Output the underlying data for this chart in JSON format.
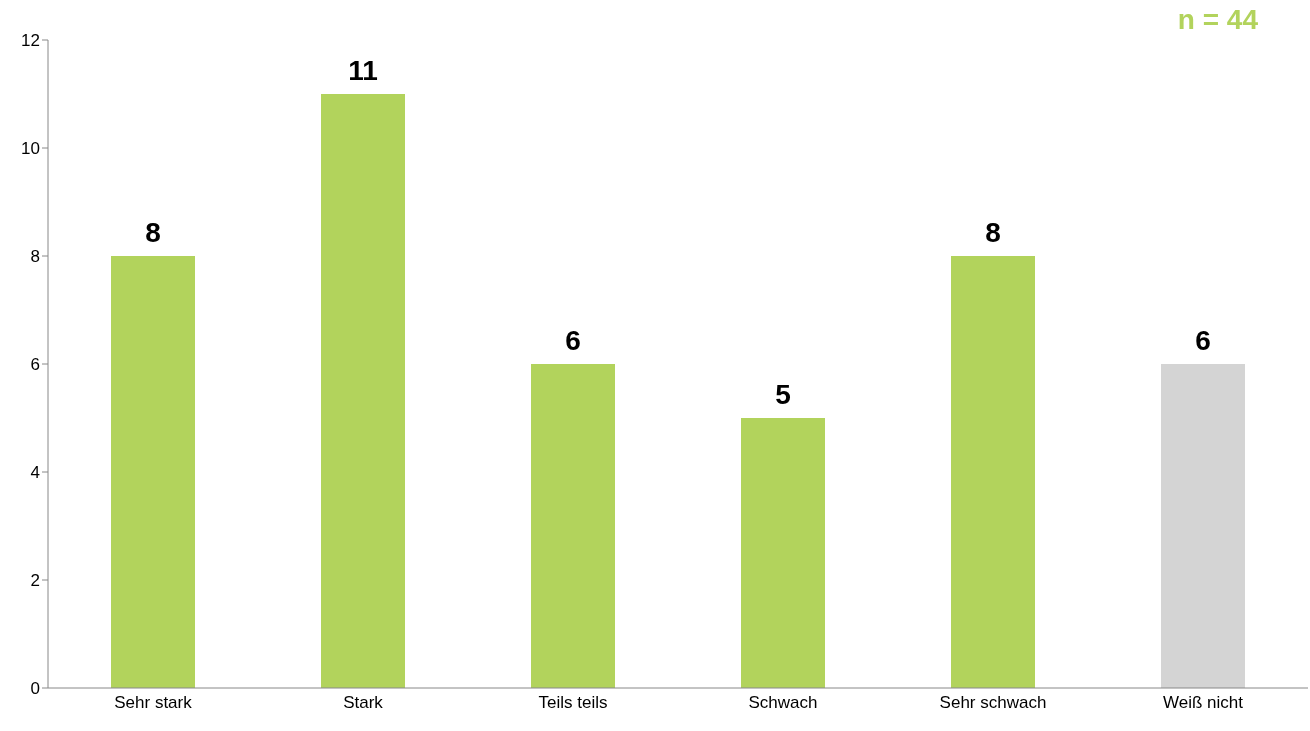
{
  "chart_data": {
    "type": "bar",
    "annotations": [
      "n = 44"
    ],
    "categories": [
      "Sehr stark",
      "Stark",
      "Teils teils",
      "Schwach",
      "Sehr schwach",
      "Weiß nicht"
    ],
    "values": [
      8,
      11,
      6,
      5,
      8,
      6
    ],
    "colors": [
      "#b2d35c",
      "#b2d35c",
      "#b2d35c",
      "#b2d35c",
      "#b2d35c",
      "#d4d4d4"
    ],
    "ylim": [
      0,
      12
    ],
    "yticks": [
      0,
      2,
      4,
      6,
      8,
      10,
      12
    ],
    "grid": false,
    "data_labels": true
  }
}
